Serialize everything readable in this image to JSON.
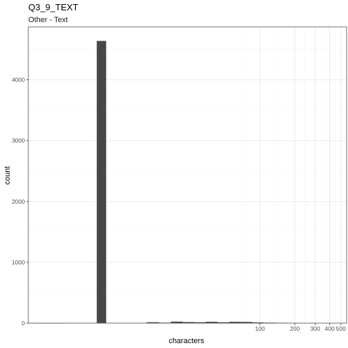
{
  "chart_data": {
    "type": "bar",
    "title": "Q3_9_TEXT",
    "subtitle": "Other - Text",
    "xlabel": "characters",
    "ylabel": "count",
    "x_scale": "log10",
    "xlim": [
      1,
      560
    ],
    "ylim": [
      0,
      4870
    ],
    "x_ticks": [
      100,
      200,
      300,
      400,
      500
    ],
    "y_ticks": [
      0,
      1000,
      2000,
      3000,
      4000
    ],
    "grid": true,
    "bins": [
      {
        "x0": 1.1,
        "x1": 1.55,
        "count": 3
      },
      {
        "x0": 1.55,
        "x1": 2.1,
        "count": 3
      },
      {
        "x0": 3.9,
        "x1": 4.7,
        "count": 4640
      },
      {
        "x0": 10.5,
        "x1": 13.5,
        "count": 15
      },
      {
        "x0": 13.5,
        "x1": 17.0,
        "count": 8
      },
      {
        "x0": 17.0,
        "x1": 21.5,
        "count": 25
      },
      {
        "x0": 21.5,
        "x1": 27.0,
        "count": 18
      },
      {
        "x0": 27.0,
        "x1": 34.0,
        "count": 15
      },
      {
        "x0": 34.0,
        "x1": 43.0,
        "count": 22
      },
      {
        "x0": 43.0,
        "x1": 54.0,
        "count": 14
      },
      {
        "x0": 54.0,
        "x1": 68.0,
        "count": 22
      },
      {
        "x0": 68.0,
        "x1": 86.0,
        "count": 20
      },
      {
        "x0": 86.0,
        "x1": 108.0,
        "count": 12
      },
      {
        "x0": 108.0,
        "x1": 136.0,
        "count": 8
      },
      {
        "x0": 136.0,
        "x1": 172.0,
        "count": 6
      }
    ]
  },
  "colors": {
    "bar": "#474747",
    "panel_border": "#4d4d4d",
    "grid_major": "#ebebeb",
    "grid_minor": "#f5f5f5",
    "tick_text": "#4d4d4d"
  }
}
